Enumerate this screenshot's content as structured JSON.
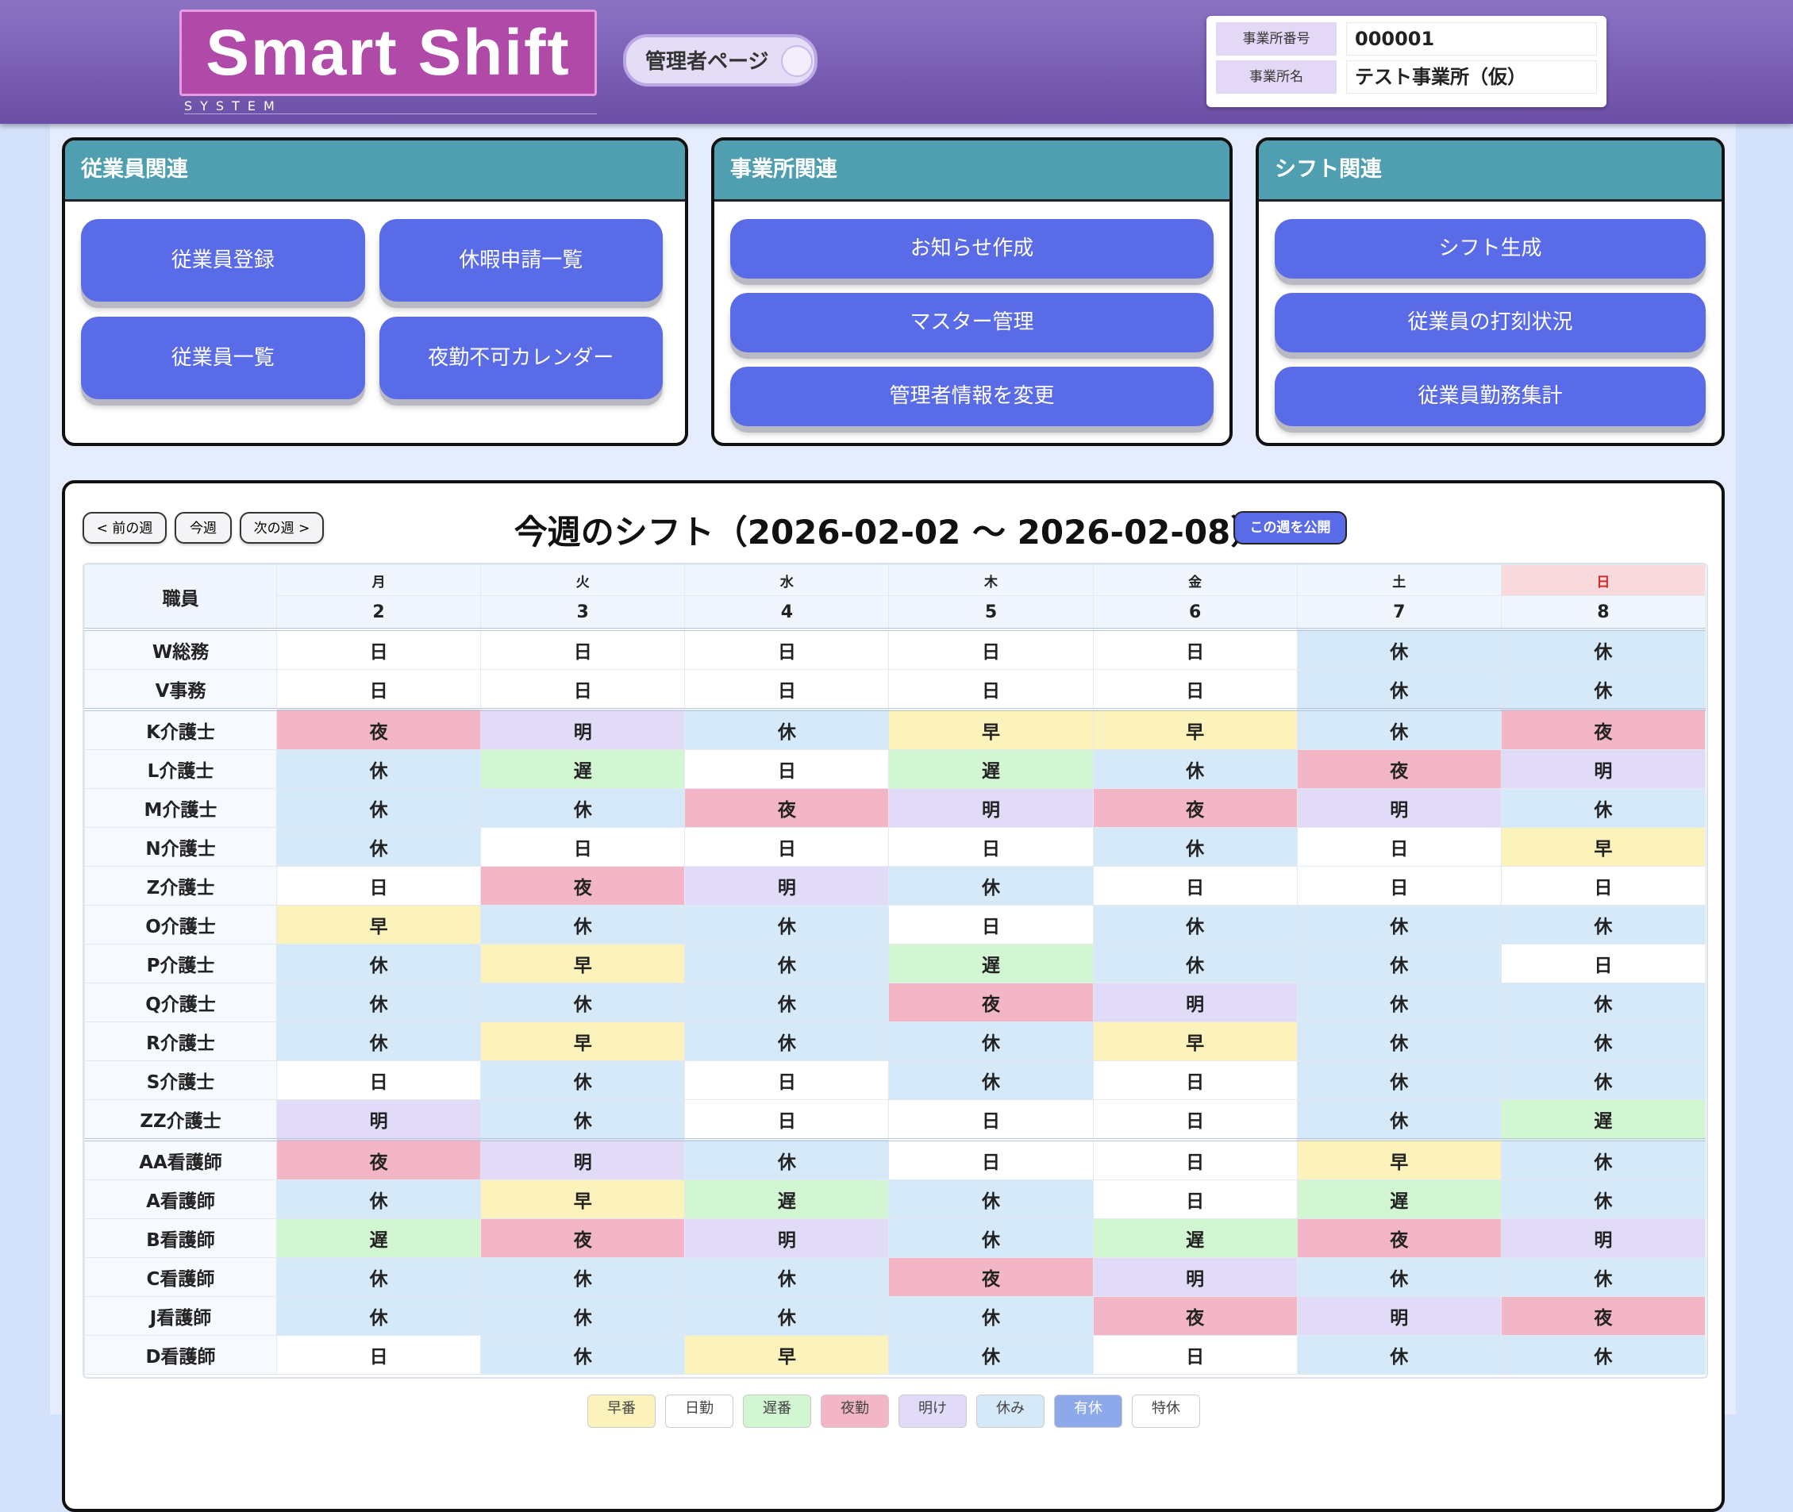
{
  "header": {
    "logo": "Smart Shift",
    "logo_sub": "SYSTEM",
    "badge": "管理者ページ",
    "office": [
      {
        "label": "事業所番号",
        "value": "000001"
      },
      {
        "label": "事業所名",
        "value": "テスト事業所（仮）"
      }
    ]
  },
  "panels": [
    {
      "title": "従業員関連",
      "buttons": [
        "従業員登録",
        "休暇申請一覧",
        "従業員一覧",
        "夜勤不可カレンダー"
      ]
    },
    {
      "title": "事業所関連",
      "buttons": [
        "お知らせ作成",
        "マスター管理",
        "管理者情報を変更"
      ]
    },
    {
      "title": "シフト関連",
      "buttons": [
        "シフト生成",
        "従業員の打刻状況",
        "従業員勤務集計"
      ]
    }
  ],
  "shift": {
    "nav": [
      "< 前の週",
      "今週",
      "次の週 >"
    ],
    "title": "今週のシフト（2026-02-02 〜 2026-02-08）",
    "publish": "この週を公開",
    "staff_header": "職員",
    "days": [
      {
        "weekday": "月",
        "date": 2
      },
      {
        "weekday": "火",
        "date": 3
      },
      {
        "weekday": "水",
        "date": 4
      },
      {
        "weekday": "木",
        "date": 5
      },
      {
        "weekday": "金",
        "date": 6
      },
      {
        "weekday": "土",
        "date": 7
      },
      {
        "weekday": "日",
        "date": 8,
        "color": "#d42a2a"
      }
    ],
    "groups": [
      {
        "rows": [
          {
            "name": "W総務",
            "shifts": [
              "日",
              "日",
              "日",
              "日",
              "日",
              "休",
              "休"
            ]
          },
          {
            "name": "V事務",
            "shifts": [
              "日",
              "日",
              "日",
              "日",
              "日",
              "休",
              "休"
            ]
          }
        ]
      },
      {
        "rows": [
          {
            "name": "K介護士",
            "shifts": [
              "夜",
              "明",
              "休",
              "早",
              "早",
              "休",
              "夜"
            ]
          },
          {
            "name": "L介護士",
            "shifts": [
              "休",
              "遅",
              "日",
              "遅",
              "休",
              "夜",
              "明"
            ]
          },
          {
            "name": "M介護士",
            "shifts": [
              "休",
              "休",
              "夜",
              "明",
              "夜",
              "明",
              "休"
            ]
          },
          {
            "name": "N介護士",
            "shifts": [
              "休",
              "日",
              "日",
              "日",
              "休",
              "日",
              "早"
            ]
          },
          {
            "name": "Z介護士",
            "shifts": [
              "日",
              "夜",
              "明",
              "休",
              "日",
              "日",
              "日"
            ]
          },
          {
            "name": "O介護士",
            "shifts": [
              "早",
              "休",
              "休",
              "日",
              "休",
              "休",
              "休"
            ]
          },
          {
            "name": "P介護士",
            "shifts": [
              "休",
              "早",
              "休",
              "遅",
              "休",
              "休",
              "日"
            ]
          },
          {
            "name": "Q介護士",
            "shifts": [
              "休",
              "休",
              "休",
              "夜",
              "明",
              "休",
              "休"
            ]
          },
          {
            "name": "R介護士",
            "shifts": [
              "休",
              "早",
              "休",
              "休",
              "早",
              "休",
              "休"
            ]
          },
          {
            "name": "S介護士",
            "shifts": [
              "日",
              "休",
              "日",
              "休",
              "日",
              "休",
              "休"
            ]
          },
          {
            "name": "ZZ介護士",
            "shifts": [
              "明",
              "休",
              "日",
              "日",
              "日",
              "休",
              "遅"
            ]
          }
        ]
      },
      {
        "rows": [
          {
            "name": "AA看護師",
            "shifts": [
              "夜",
              "明",
              "休",
              "日",
              "日",
              "早",
              "休"
            ]
          },
          {
            "name": "A看護師",
            "shifts": [
              "休",
              "早",
              "遅",
              "休",
              "日",
              "遅",
              "休"
            ]
          },
          {
            "name": "B看護師",
            "shifts": [
              "遅",
              "夜",
              "明",
              "休",
              "遅",
              "夜",
              "明"
            ]
          },
          {
            "name": "C看護師",
            "shifts": [
              "休",
              "休",
              "休",
              "夜",
              "明",
              "休",
              "休"
            ]
          },
          {
            "name": "J看護師",
            "shifts": [
              "休",
              "休",
              "休",
              "休",
              "夜",
              "明",
              "夜"
            ]
          },
          {
            "name": "D看護師",
            "shifts": [
              "日",
              "休",
              "早",
              "休",
              "日",
              "休",
              "休"
            ]
          }
        ]
      }
    ]
  },
  "legend": [
    {
      "label": "早番",
      "code": "早",
      "color": "#fcf2bb"
    },
    {
      "label": "日勤",
      "code": "日",
      "color": "#ffffff"
    },
    {
      "label": "遅番",
      "code": "遅",
      "color": "#d2f5d2"
    },
    {
      "label": "夜勤",
      "code": "夜",
      "color": "#f3b6c6"
    },
    {
      "label": "明け",
      "code": "明",
      "color": "#e1dbf8"
    },
    {
      "label": "休み",
      "code": "休",
      "color": "#d5e9f8"
    },
    {
      "label": "有休",
      "color": "#8da9ea"
    },
    {
      "label": "特休",
      "color": "#ffffff"
    }
  ]
}
